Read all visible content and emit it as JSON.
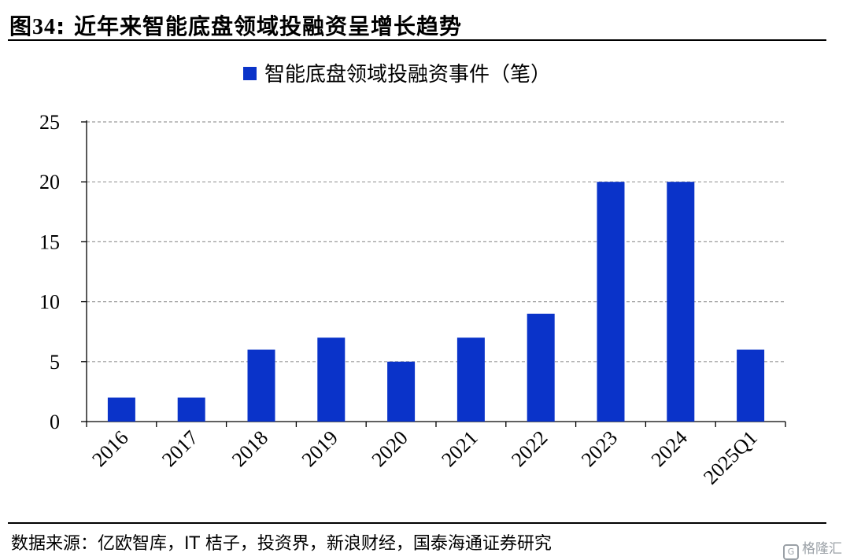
{
  "figure": {
    "title_prefix": "图",
    "title_number": "34",
    "title_sep": ":",
    "title_text": "近年来智能底盘领域投融资呈增长趋势"
  },
  "source": "数据来源：亿欧智库，IT 桔子，投资界，新浪财经，国泰海通证券研究",
  "watermark": "格隆汇",
  "chart_data": {
    "type": "bar",
    "categories": [
      "2016",
      "2017",
      "2018",
      "2019",
      "2020",
      "2021",
      "2022",
      "2023",
      "2024",
      "2025Q1"
    ],
    "series": [
      {
        "name": "智能底盘领域投融资事件（笔）",
        "values": [
          2,
          2,
          6,
          7,
          5,
          7,
          9,
          20,
          20,
          6
        ],
        "color": "#0a33c9"
      }
    ],
    "yticks": [
      0,
      5,
      10,
      15,
      20,
      25
    ],
    "ylim": [
      0,
      25
    ],
    "grid": true,
    "grid_style": "dashed",
    "legend_position": "top-center",
    "xlabel": "",
    "ylabel": ""
  }
}
